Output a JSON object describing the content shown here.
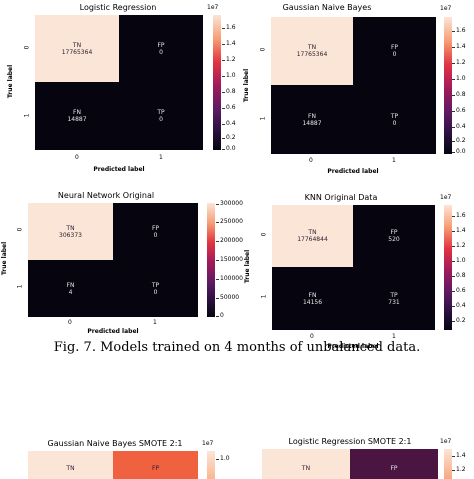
{
  "caption": "Fig. 7.  Models trained on 4 months of unbalanced data.",
  "colors": {
    "tn_high": "#fbe5d6",
    "low": "#06050f",
    "orange": "#f06140",
    "purple": "#4a1540"
  },
  "chart_data": [
    {
      "type": "heatmap",
      "title": "Logistic Regression",
      "xlabel": "Predicted label",
      "ylabel": "True label",
      "x_ticks": [
        "0",
        "1"
      ],
      "y_ticks": [
        "0",
        "1"
      ],
      "cells": [
        {
          "label": "TN",
          "value": "17765364"
        },
        {
          "label": "FP",
          "value": "0"
        },
        {
          "label": "FN",
          "value": "14887"
        },
        {
          "label": "TP",
          "value": "0"
        }
      ],
      "colorbar_exponent": "1e7",
      "colorbar_ticks": [
        "1.6",
        "1.4",
        "1.2",
        "1.0",
        "0.8",
        "0.6",
        "0.4",
        "0.2",
        "0.0"
      ]
    },
    {
      "type": "heatmap",
      "title": "Gaussian Naive Bayes",
      "xlabel": "Predicted label",
      "ylabel": "True label",
      "x_ticks": [
        "0",
        "1"
      ],
      "y_ticks": [
        "0",
        "1"
      ],
      "cells": [
        {
          "label": "TN",
          "value": "17765364"
        },
        {
          "label": "FP",
          "value": "0"
        },
        {
          "label": "FN",
          "value": "14887"
        },
        {
          "label": "TP",
          "value": "0"
        }
      ],
      "colorbar_exponent": "1e7",
      "colorbar_ticks": [
        "1.6",
        "1.4",
        "1.2",
        "1.0",
        "0.8",
        "0.6",
        "0.4",
        "0.2",
        "0.0"
      ]
    },
    {
      "type": "heatmap",
      "title": "Neural Network Original",
      "xlabel": "Predicted label",
      "ylabel": "True label",
      "x_ticks": [
        "0",
        "1"
      ],
      "y_ticks": [
        "0",
        "1"
      ],
      "cells": [
        {
          "label": "TN",
          "value": "306373"
        },
        {
          "label": "FP",
          "value": "0"
        },
        {
          "label": "FN",
          "value": "4"
        },
        {
          "label": "TP",
          "value": "0"
        }
      ],
      "colorbar_exponent": "",
      "colorbar_ticks": [
        "300000",
        "250000",
        "200000",
        "150000",
        "100000",
        "50000",
        "0"
      ]
    },
    {
      "type": "heatmap",
      "title": "KNN Original Data",
      "xlabel": "Predicted label",
      "ylabel": "True label",
      "x_ticks": [
        "0",
        "1"
      ],
      "y_ticks": [
        "0",
        "1"
      ],
      "cells": [
        {
          "label": "TN",
          "value": "17764844"
        },
        {
          "label": "FP",
          "value": "520"
        },
        {
          "label": "FN",
          "value": "14156"
        },
        {
          "label": "TP",
          "value": "731"
        }
      ],
      "colorbar_exponent": "1e7",
      "colorbar_ticks": [
        "1.6",
        "1.4",
        "1.2",
        "1.0",
        "0.8",
        "0.6",
        "0.4",
        "0.2"
      ]
    },
    {
      "type": "heatmap",
      "title": "Gaussian Naive Bayes SMOTE 2:1",
      "cells": [
        {
          "label": "TN",
          "value": ""
        },
        {
          "label": "FP",
          "value": ""
        }
      ],
      "colorbar_exponent": "1e7",
      "colorbar_ticks": [
        "1.0"
      ]
    },
    {
      "type": "heatmap",
      "title": "Logistic Regression SMOTE 2:1",
      "cells": [
        {
          "label": "TN",
          "value": ""
        },
        {
          "label": "FP",
          "value": ""
        }
      ],
      "colorbar_exponent": "1e7",
      "colorbar_ticks": [
        "1.4",
        "1.2"
      ]
    }
  ]
}
